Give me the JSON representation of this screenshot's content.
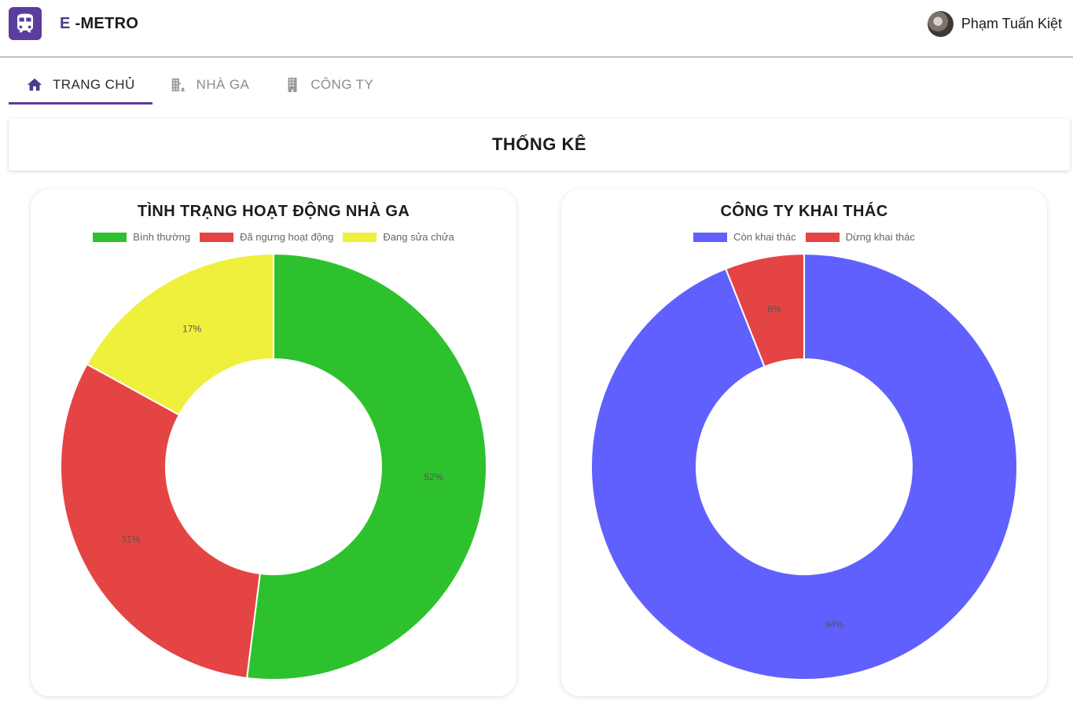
{
  "header": {
    "brand_prefix": "E",
    "brand_rest": " -METRO",
    "user_name": "Phạm Tuấn Kiệt"
  },
  "tabs": [
    {
      "label": "TRANG CHỦ",
      "icon": "home-icon"
    },
    {
      "label": "NHÀ GA",
      "icon": "station-icon"
    },
    {
      "label": "CÔNG TY",
      "icon": "company-building-icon"
    }
  ],
  "stats_title": "THỐNG KÊ",
  "colors": {
    "accent": "#5a3d9e",
    "green": "#2ec12e",
    "red": "#e54444",
    "yellow": "#eff03c",
    "blue": "#6060fe"
  },
  "chart_data": [
    {
      "type": "doughnut",
      "title": "TÌNH TRẠNG HOẠT ĐỘNG NHÀ GA",
      "legend_position": "top",
      "categories": [
        "Bình thường",
        "Đã ngưng hoạt động",
        "Đang sửa chửa"
      ],
      "values": [
        52,
        31,
        17
      ],
      "labels": [
        "52%",
        "31%",
        "17%"
      ],
      "colors": [
        "#2ec12e",
        "#e54444",
        "#eff03c"
      ]
    },
    {
      "type": "doughnut",
      "title": "CÔNG TY KHAI THÁC",
      "legend_position": "top",
      "categories": [
        "Còn khai thác",
        "Dừng khai thác"
      ],
      "values": [
        94,
        6
      ],
      "labels": [
        "94%",
        "6%"
      ],
      "colors": [
        "#6060fe",
        "#e54444"
      ]
    }
  ]
}
